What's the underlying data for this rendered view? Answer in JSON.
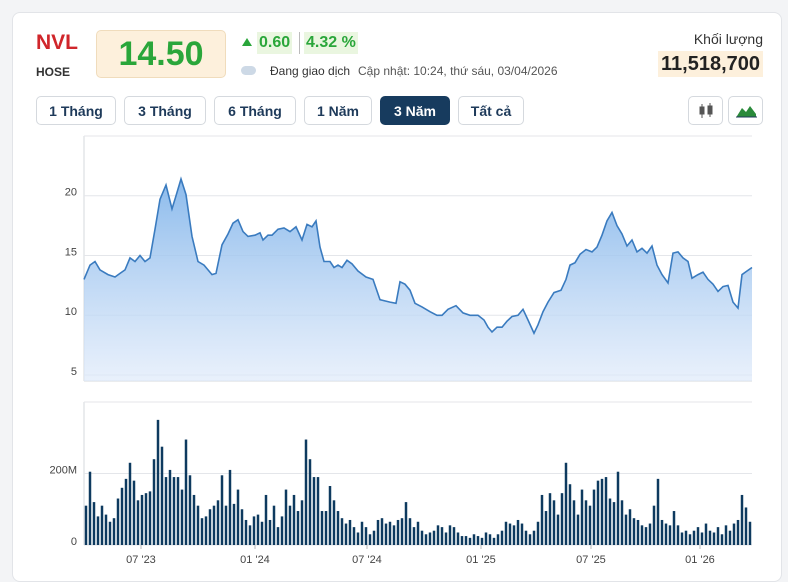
{
  "header": {
    "symbol": "NVL",
    "exchange": "HOSE",
    "price": "14.50",
    "change": "0.60",
    "change_pct": "4.32 %",
    "status": "Đang giao dịch",
    "updated": "Cập nhật: 10:24, thứ sáu, 03/04/2026",
    "volume_label": "Khối lượng",
    "volume": "11,518,700"
  },
  "range_buttons": {
    "labels": [
      "1 Tháng",
      "3 Tháng",
      "6 Tháng",
      "1 Năm",
      "3 Năm",
      "Tất cả"
    ],
    "active": 4
  },
  "chart_data": [
    {
      "type": "area",
      "color": "#3a7bbf",
      "grid": true,
      "xlim": [
        -0.5,
        166.5
      ],
      "ylim": [
        4.5,
        25
      ],
      "yticks": [
        5,
        10,
        15,
        20
      ],
      "x": [
        -0.5,
        1,
        2.25,
        3.5,
        5.5,
        7.25,
        8.5,
        9.75,
        11,
        12.25,
        13.5,
        14.75,
        16,
        17.25,
        18.5,
        20,
        21.5,
        22.5,
        23.75,
        25,
        26.5,
        28,
        29.5,
        31.5,
        32.5,
        34,
        35.5,
        36.75,
        38,
        39.25,
        40.5,
        42.25,
        43.5,
        44.25,
        45.5,
        46.5,
        48,
        49.5,
        51,
        52.5,
        54,
        55.25,
        56.5,
        57.5,
        58.5,
        59.5,
        61,
        62,
        63,
        64,
        65.25,
        66.5,
        68,
        70,
        71.75,
        73.5,
        76,
        77.5,
        78.5,
        79.75,
        81,
        82.25,
        84,
        86,
        87.75,
        89,
        90.5,
        92.5,
        94.25,
        96,
        98,
        99.5,
        100.5,
        101.5,
        102.75,
        104,
        105.25,
        106.5,
        108,
        109.25,
        110.5,
        112,
        113,
        114.25,
        115.5,
        117,
        118.75,
        120,
        121,
        122.25,
        123.5,
        125,
        126.5,
        127.75,
        129,
        130.25,
        131.5,
        132.75,
        134,
        135.25,
        136.5,
        137.75,
        139,
        140.25,
        141.5,
        142.75,
        144,
        145.5,
        146.75,
        148,
        149.25,
        150.5,
        151.5,
        153,
        154.25,
        155.5,
        156.75,
        158,
        159.25,
        160.5,
        161.75,
        163,
        164,
        165.25,
        166.5
      ],
      "values": [
        13.0,
        14.2,
        14.5,
        13.8,
        13.4,
        13.2,
        13.5,
        13.8,
        14.8,
        14.5,
        15.0,
        14.5,
        14.8,
        17.2,
        19.7,
        20.9,
        18.9,
        20.0,
        21.4,
        20.1,
        16.6,
        14.5,
        14.2,
        13.4,
        13.5,
        15.9,
        16.8,
        17.7,
        18.0,
        17.0,
        16.6,
        16.7,
        16.9,
        16.3,
        16.7,
        16.7,
        17.2,
        17.3,
        17.0,
        17.4,
        16.3,
        17.6,
        17.4,
        17.9,
        15.7,
        14.5,
        14.5,
        14.0,
        14.2,
        14.0,
        14.6,
        14.3,
        13.7,
        13.2,
        13.0,
        11.3,
        11.1,
        11.0,
        12.8,
        12.6,
        12.1,
        11.0,
        10.7,
        10.3,
        10.0,
        10.0,
        10.5,
        10.8,
        10.2,
        10.0,
        10.0,
        9.6,
        9.0,
        8.6,
        9.0,
        9.0,
        9.5,
        9.9,
        10.0,
        10.5,
        9.6,
        8.5,
        9.2,
        10.3,
        11.1,
        11.9,
        12.1,
        13.0,
        14.2,
        14.4,
        15.1,
        15.5,
        15.3,
        15.7,
        16.7,
        17.9,
        18.6,
        17.5,
        16.8,
        15.8,
        16.3,
        15.3,
        15.6,
        15.2,
        15.8,
        14.2,
        13.4,
        12.7,
        15.2,
        15.3,
        14.8,
        14.5,
        13.1,
        13.4,
        13.6,
        13.0,
        12.6,
        12.0,
        12.4,
        12.5,
        11.1,
        10.6,
        13.4,
        13.7,
        14.0
      ]
    },
    {
      "type": "bar",
      "color": "#0e3a5f",
      "grid": true,
      "xlim": [
        -0.5,
        166.5
      ],
      "ylim": [
        0,
        400
      ],
      "yticks": [
        0,
        {
          "value": 200,
          "label": "200M"
        }
      ],
      "xticks": [
        {
          "value": 13.75,
          "label": "07 '23"
        },
        {
          "value": 42.25,
          "label": "01 '24"
        },
        {
          "value": 70.25,
          "label": "07 '24"
        },
        {
          "value": 98.75,
          "label": "01 '25"
        },
        {
          "value": 126.25,
          "label": "07 '25"
        },
        {
          "value": 153.5,
          "label": "01 '26"
        }
      ],
      "x": [
        0,
        1,
        2,
        3,
        4,
        5,
        6,
        7,
        8,
        9,
        10,
        11,
        12,
        13,
        14,
        15,
        16,
        17,
        18,
        19,
        20,
        21,
        22,
        23,
        24,
        25,
        26,
        27,
        28,
        29,
        30,
        31,
        32,
        33,
        34,
        35,
        36,
        37,
        38,
        39,
        40,
        41,
        42,
        43,
        44,
        45,
        46,
        47,
        48,
        49,
        50,
        51,
        52,
        53,
        54,
        55,
        56,
        57,
        58,
        59,
        60,
        61,
        62,
        63,
        64,
        65,
        66,
        67,
        68,
        69,
        70,
        71,
        72,
        73,
        74,
        75,
        76,
        77,
        78,
        79,
        80,
        81,
        82,
        83,
        84,
        85,
        86,
        87,
        88,
        89,
        90,
        91,
        92,
        93,
        94,
        95,
        96,
        97,
        98,
        99,
        100,
        101,
        102,
        103,
        104,
        105,
        106,
        107,
        108,
        109,
        110,
        111,
        112,
        113,
        114,
        115,
        116,
        117,
        118,
        119,
        120,
        121,
        122,
        123,
        124,
        125,
        126,
        127,
        128,
        129,
        130,
        131,
        132,
        133,
        134,
        135,
        136,
        137,
        138,
        139,
        140,
        141,
        142,
        143,
        144,
        145,
        146,
        147,
        148,
        149,
        150,
        151,
        152,
        153,
        154,
        155,
        156,
        157,
        158,
        159,
        160,
        161,
        162,
        163,
        164,
        165,
        166
      ],
      "values": [
        110,
        205,
        120,
        80,
        110,
        85,
        65,
        75,
        130,
        160,
        185,
        230,
        180,
        125,
        140,
        145,
        150,
        240,
        350,
        275,
        190,
        210,
        190,
        190,
        155,
        295,
        195,
        140,
        110,
        75,
        80,
        100,
        110,
        125,
        195,
        110,
        210,
        115,
        155,
        100,
        70,
        55,
        80,
        85,
        65,
        140,
        70,
        110,
        50,
        80,
        155,
        110,
        140,
        95,
        125,
        295,
        240,
        190,
        190,
        95,
        95,
        165,
        125,
        95,
        75,
        60,
        70,
        50,
        35,
        65,
        50,
        30,
        40,
        70,
        75,
        60,
        65,
        55,
        70,
        75,
        120,
        75,
        50,
        65,
        40,
        30,
        35,
        40,
        55,
        50,
        35,
        55,
        50,
        35,
        25,
        25,
        20,
        30,
        25,
        20,
        35,
        30,
        20,
        30,
        40,
        65,
        60,
        55,
        70,
        60,
        40,
        30,
        40,
        65,
        140,
        95,
        145,
        125,
        85,
        145,
        230,
        170,
        125,
        85,
        155,
        125,
        110,
        155,
        180,
        185,
        190,
        130,
        120,
        205,
        125,
        85,
        100,
        75,
        70,
        55,
        50,
        60,
        110,
        185,
        70,
        60,
        55,
        95,
        55,
        35,
        40,
        30,
        40,
        50,
        35,
        60,
        40,
        35,
        50,
        30,
        55,
        40,
        60,
        70,
        140,
        105,
        65
      ]
    }
  ]
}
